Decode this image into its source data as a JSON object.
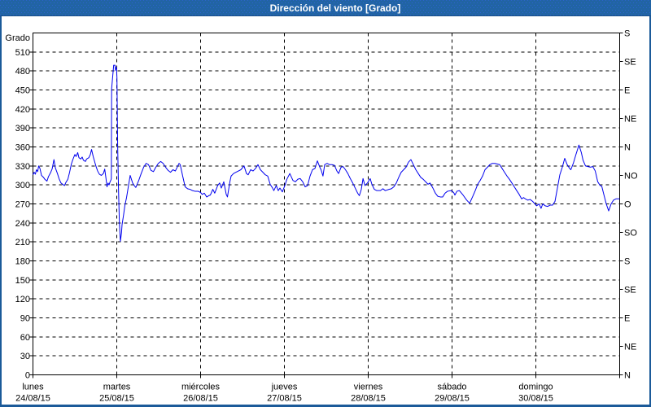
{
  "window": {
    "title": "Dirección del viento [Grado]"
  },
  "colors": {
    "frame_border": "#1b5a99",
    "titlebar_base": "#2164a4",
    "titlebar_dot": "#2d62cf",
    "titlebar_edge": "#164e86",
    "titlebar_text": "#ffffff",
    "plot_background": "#ffffff",
    "grid": "#000000",
    "axis_text": "#000000",
    "series_line": "#0000ee"
  },
  "chart_data": {
    "type": "line",
    "title": "Dirección del viento [Grado]",
    "grid": "dashed",
    "legend": "none",
    "y_axis": {
      "label": "Grado",
      "min": 0,
      "max": 540,
      "tick_step": 30,
      "tick_labels": [
        "0",
        "30",
        "60",
        "90",
        "120",
        "150",
        "180",
        "210",
        "240",
        "270",
        "300",
        "330",
        "360",
        "390",
        "420",
        "450",
        "480",
        "510"
      ]
    },
    "y2_axis": {
      "min": 0,
      "max": 540,
      "tick_step": 45,
      "tick_labels_bottom_to_top": [
        "N",
        "NE",
        "E",
        "SE",
        "S",
        "SO",
        "O",
        "NO",
        "N",
        "NE",
        "E",
        "SE",
        "S"
      ]
    },
    "x_axis": {
      "unit": "hours",
      "min": 0,
      "max": 168,
      "day_span": 24,
      "days": [
        {
          "name": "lunes",
          "date": "24/08/15"
        },
        {
          "name": "martes",
          "date": "25/08/15"
        },
        {
          "name": "miércoles",
          "date": "26/08/15"
        },
        {
          "name": "jueves",
          "date": "27/08/15"
        },
        {
          "name": "viernes",
          "date": "28/08/15"
        },
        {
          "name": "sábado",
          "date": "29/08/15"
        },
        {
          "name": "domingo",
          "date": "30/08/15"
        }
      ]
    },
    "series": [
      {
        "name": "Dirección del viento",
        "unit": "Grado",
        "color": "#0000ee",
        "points": [
          [
            0.0,
            316
          ],
          [
            0.35,
            320
          ],
          [
            0.7,
            317
          ],
          [
            1.0,
            324
          ],
          [
            1.35,
            321
          ],
          [
            1.63,
            330
          ],
          [
            2.0,
            326
          ],
          [
            2.45,
            315
          ],
          [
            3.01,
            312
          ],
          [
            3.38,
            309
          ],
          [
            4.01,
            306
          ],
          [
            4.43,
            313
          ],
          [
            5.01,
            319
          ],
          [
            5.48,
            325
          ],
          [
            6.01,
            340
          ],
          [
            6.41,
            327
          ],
          [
            7.01,
            318
          ],
          [
            7.46,
            310
          ],
          [
            8.02,
            303
          ],
          [
            8.5,
            301
          ],
          [
            9.02,
            299
          ],
          [
            9.44,
            304
          ],
          [
            10.0,
            309
          ],
          [
            10.49,
            320
          ],
          [
            11.0,
            333
          ],
          [
            11.42,
            340
          ],
          [
            12.0,
            348
          ],
          [
            12.35,
            345
          ],
          [
            12.82,
            351
          ],
          [
            13.17,
            343
          ],
          [
            13.7,
            341
          ],
          [
            14.1,
            344
          ],
          [
            14.45,
            339
          ],
          [
            15.01,
            337
          ],
          [
            15.38,
            341
          ],
          [
            16.01,
            343
          ],
          [
            16.43,
            348
          ],
          [
            16.78,
            356
          ],
          [
            17.24,
            345
          ],
          [
            18.01,
            330
          ],
          [
            18.52,
            322
          ],
          [
            19.01,
            317
          ],
          [
            19.57,
            315
          ],
          [
            20.16,
            318
          ],
          [
            20.55,
            325
          ],
          [
            20.92,
            310
          ],
          [
            21.2,
            297
          ],
          [
            21.51,
            303
          ],
          [
            21.79,
            300
          ],
          [
            22.09,
            305
          ],
          [
            22.35,
            308
          ],
          [
            22.44,
            310
          ],
          [
            22.53,
            452
          ],
          [
            23.11,
            489
          ],
          [
            23.49,
            489
          ],
          [
            23.67,
            481
          ],
          [
            23.91,
            486
          ],
          [
            24.05,
            470
          ],
          [
            24.26,
            360
          ],
          [
            24.51,
            290
          ],
          [
            24.75,
            240
          ],
          [
            25.03,
            211
          ],
          [
            25.35,
            224
          ],
          [
            25.51,
            237
          ],
          [
            25.96,
            253
          ],
          [
            26.33,
            268
          ],
          [
            26.8,
            280
          ],
          [
            27.36,
            299
          ],
          [
            27.84,
            315
          ],
          [
            28.54,
            303
          ],
          [
            29.01,
            299
          ],
          [
            29.45,
            296
          ],
          [
            30.29,
            307
          ],
          [
            30.99,
            318
          ],
          [
            31.69,
            328
          ],
          [
            32.39,
            334
          ],
          [
            33.09,
            332
          ],
          [
            33.79,
            323
          ],
          [
            34.49,
            321
          ],
          [
            35.18,
            328
          ],
          [
            35.88,
            334
          ],
          [
            36.58,
            337
          ],
          [
            37.28,
            334
          ],
          [
            37.98,
            328
          ],
          [
            38.68,
            323
          ],
          [
            39.38,
            320
          ],
          [
            40.08,
            324
          ],
          [
            40.78,
            322
          ],
          [
            41.83,
            334
          ],
          [
            42.17,
            332
          ],
          [
            42.87,
            314
          ],
          [
            43.57,
            297
          ],
          [
            44.27,
            294
          ],
          [
            44.97,
            293
          ],
          [
            45.67,
            291
          ],
          [
            46.37,
            290
          ],
          [
            47.3,
            290
          ],
          [
            48.0,
            288
          ],
          [
            48.47,
            285
          ],
          [
            49.05,
            287
          ],
          [
            49.75,
            281
          ],
          [
            50.33,
            283
          ],
          [
            50.8,
            284
          ],
          [
            51.5,
            293
          ],
          [
            52.05,
            287
          ],
          [
            52.89,
            299
          ],
          [
            53.45,
            303
          ],
          [
            53.94,
            295
          ],
          [
            54.64,
            305
          ],
          [
            55.34,
            285
          ],
          [
            55.69,
            281
          ],
          [
            56.39,
            305
          ],
          [
            56.74,
            314
          ],
          [
            57.44,
            318
          ],
          [
            58.14,
            320
          ],
          [
            58.83,
            322
          ],
          [
            59.53,
            324
          ],
          [
            60.44,
            330
          ],
          [
            61.14,
            318
          ],
          [
            61.63,
            316
          ],
          [
            62.33,
            324
          ],
          [
            63.03,
            322
          ],
          [
            63.73,
            326
          ],
          [
            64.43,
            332
          ],
          [
            65.13,
            324
          ],
          [
            65.83,
            320
          ],
          [
            66.52,
            316
          ],
          [
            67.22,
            314
          ],
          [
            67.92,
            301
          ],
          [
            68.62,
            295
          ],
          [
            68.97,
            291
          ],
          [
            69.67,
            299
          ],
          [
            70.23,
            291
          ],
          [
            70.72,
            295
          ],
          [
            71.42,
            289
          ],
          [
            72.12,
            299
          ],
          [
            72.7,
            309
          ],
          [
            73.54,
            318
          ],
          [
            74.45,
            307
          ],
          [
            75.15,
            305
          ],
          [
            75.84,
            309
          ],
          [
            76.54,
            310
          ],
          [
            77.24,
            305
          ],
          [
            77.94,
            297
          ],
          [
            78.64,
            299
          ],
          [
            79.34,
            314
          ],
          [
            80.04,
            324
          ],
          [
            80.74,
            326
          ],
          [
            81.44,
            338
          ],
          [
            82.14,
            328
          ],
          [
            82.49,
            324
          ],
          [
            83.04,
            314
          ],
          [
            83.53,
            332
          ],
          [
            84.23,
            334
          ],
          [
            84.93,
            332
          ],
          [
            85.63,
            332
          ],
          [
            86.33,
            331
          ],
          [
            87.03,
            322
          ],
          [
            87.52,
            318
          ],
          [
            88.22,
            328
          ],
          [
            88.78,
            329
          ],
          [
            89.48,
            324
          ],
          [
            90.17,
            318
          ],
          [
            90.87,
            310
          ],
          [
            91.57,
            303
          ],
          [
            92.27,
            295
          ],
          [
            92.97,
            287
          ],
          [
            93.46,
            283
          ],
          [
            94.02,
            293
          ],
          [
            94.51,
            310
          ],
          [
            95.07,
            299
          ],
          [
            95.77,
            303
          ],
          [
            96.56,
            310
          ],
          [
            97.05,
            301
          ],
          [
            97.75,
            293
          ],
          [
            98.45,
            291
          ],
          [
            99.5,
            291
          ],
          [
            100.19,
            294
          ],
          [
            100.89,
            291
          ],
          [
            101.94,
            293
          ],
          [
            102.64,
            294
          ],
          [
            103.34,
            297
          ],
          [
            104.04,
            303
          ],
          [
            104.74,
            312
          ],
          [
            105.44,
            320
          ],
          [
            106.14,
            324
          ],
          [
            106.83,
            328
          ],
          [
            107.53,
            336
          ],
          [
            108.23,
            340
          ],
          [
            108.93,
            332
          ],
          [
            109.63,
            324
          ],
          [
            110.33,
            318
          ],
          [
            111.03,
            312
          ],
          [
            111.73,
            309
          ],
          [
            112.43,
            305
          ],
          [
            113.13,
            301
          ],
          [
            113.69,
            303
          ],
          [
            114.52,
            295
          ],
          [
            115.22,
            287
          ],
          [
            115.92,
            282
          ],
          [
            116.62,
            281
          ],
          [
            117.32,
            281
          ],
          [
            118.02,
            287
          ],
          [
            118.72,
            290
          ],
          [
            119.77,
            291
          ],
          [
            120.47,
            288
          ],
          [
            120.82,
            284
          ],
          [
            121.4,
            290
          ],
          [
            122.1,
            291
          ],
          [
            123.15,
            284
          ],
          [
            124.19,
            276
          ],
          [
            125.03,
            271
          ],
          [
            125.94,
            282
          ],
          [
            126.64,
            291
          ],
          [
            127.34,
            301
          ],
          [
            128.04,
            307
          ],
          [
            128.74,
            314
          ],
          [
            129.44,
            324
          ],
          [
            130.14,
            328
          ],
          [
            130.83,
            332
          ],
          [
            131.53,
            334
          ],
          [
            132.23,
            334
          ],
          [
            132.93,
            333
          ],
          [
            133.63,
            332
          ],
          [
            134.33,
            326
          ],
          [
            135.03,
            320
          ],
          [
            135.73,
            314
          ],
          [
            136.43,
            309
          ],
          [
            137.13,
            303
          ],
          [
            137.83,
            297
          ],
          [
            138.52,
            291
          ],
          [
            139.22,
            285
          ],
          [
            139.92,
            278
          ],
          [
            140.5,
            280
          ],
          [
            140.97,
            278
          ],
          [
            141.67,
            276
          ],
          [
            142.37,
            277
          ],
          [
            143.07,
            274
          ],
          [
            143.77,
            270
          ],
          [
            144.23,
            267
          ],
          [
            144.93,
            270
          ],
          [
            145.49,
            263
          ],
          [
            145.98,
            270
          ],
          [
            146.68,
            267
          ],
          [
            147.38,
            266
          ],
          [
            148.08,
            268
          ],
          [
            148.78,
            268
          ],
          [
            149.48,
            274
          ],
          [
            150.17,
            295
          ],
          [
            150.87,
            316
          ],
          [
            151.57,
            328
          ],
          [
            152.27,
            342
          ],
          [
            152.97,
            332
          ],
          [
            153.67,
            326
          ],
          [
            154.02,
            324
          ],
          [
            154.72,
            334
          ],
          [
            155.42,
            347
          ],
          [
            156.33,
            363
          ],
          [
            157.03,
            351
          ],
          [
            157.51,
            339
          ],
          [
            158.21,
            330
          ],
          [
            158.91,
            329
          ],
          [
            159.61,
            328
          ],
          [
            160.31,
            329
          ],
          [
            161.01,
            322
          ],
          [
            161.71,
            305
          ],
          [
            162.41,
            299
          ],
          [
            162.87,
            298
          ],
          [
            163.46,
            285
          ],
          [
            164.16,
            270
          ],
          [
            164.85,
            259
          ],
          [
            165.55,
            270
          ],
          [
            166.25,
            276
          ],
          [
            166.95,
            278
          ],
          [
            167.65,
            278
          ],
          [
            168.0,
            278
          ]
        ]
      }
    ]
  }
}
